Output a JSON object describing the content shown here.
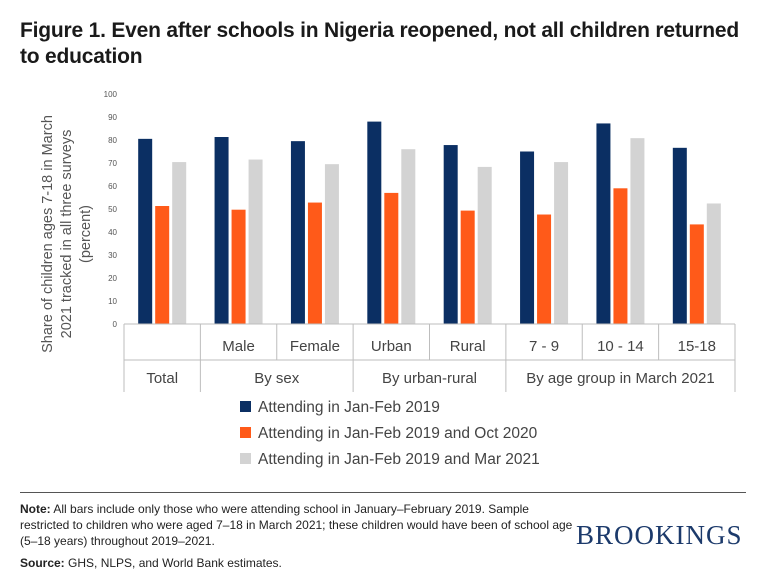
{
  "title": "Figure 1. Even after schools in Nigeria reopened, not all children returned to education",
  "chart_data": {
    "type": "bar",
    "ylabel": "Share of children ages 7-18 in March 2021 tracked in all three surveys (percent)",
    "ylabel_lines": [
      "Share of children ages 7-18 in March",
      "2021 tracked in all three surveys",
      "(percent)"
    ],
    "ylim": [
      0,
      100
    ],
    "yticks": [
      "0",
      "10",
      "20",
      "30",
      "40",
      "50",
      "60",
      "70",
      "80",
      "90",
      "100"
    ],
    "categories": [
      "",
      "Male",
      "Female",
      "Urban",
      "Rural",
      "7 - 9",
      "10 - 14",
      "15-18"
    ],
    "groups": [
      {
        "label": "Total",
        "span": 1
      },
      {
        "label": "By sex",
        "span": 2
      },
      {
        "label": "By urban-rural",
        "span": 2
      },
      {
        "label": "By age group in March 2021",
        "span": 3
      }
    ],
    "series": [
      {
        "name": "Attending in Jan-Feb 2019",
        "color": "#0b2f63",
        "values": [
          80.5,
          81.3,
          79.5,
          88,
          77.8,
          75,
          87.2,
          76.6
        ]
      },
      {
        "name": "Attending in Jan-Feb 2019 and Oct 2020",
        "color": "#ff5a19",
        "values": [
          51.3,
          49.7,
          52.8,
          57,
          49.3,
          47.6,
          59,
          43.3
        ]
      },
      {
        "name": "Attending in Jan-Feb 2019 and Mar 2021",
        "color": "#d3d3d3",
        "values": [
          70.4,
          71.5,
          69.5,
          76,
          68.3,
          70.4,
          80.8,
          52.4
        ]
      }
    ],
    "grid": false,
    "legend": "bottom"
  },
  "footer": {
    "note_label": "Note:",
    "note_text": " All bars include only those who were attending school in January–February 2019. Sample restricted to children who were aged 7–18 in March 2021; these children would have been of school age (5–18 years) throughout 2019–2021.",
    "source_label": "Source:",
    "source_text": " GHS, NLPS, and World Bank estimates."
  },
  "brand": "BROOKINGS"
}
